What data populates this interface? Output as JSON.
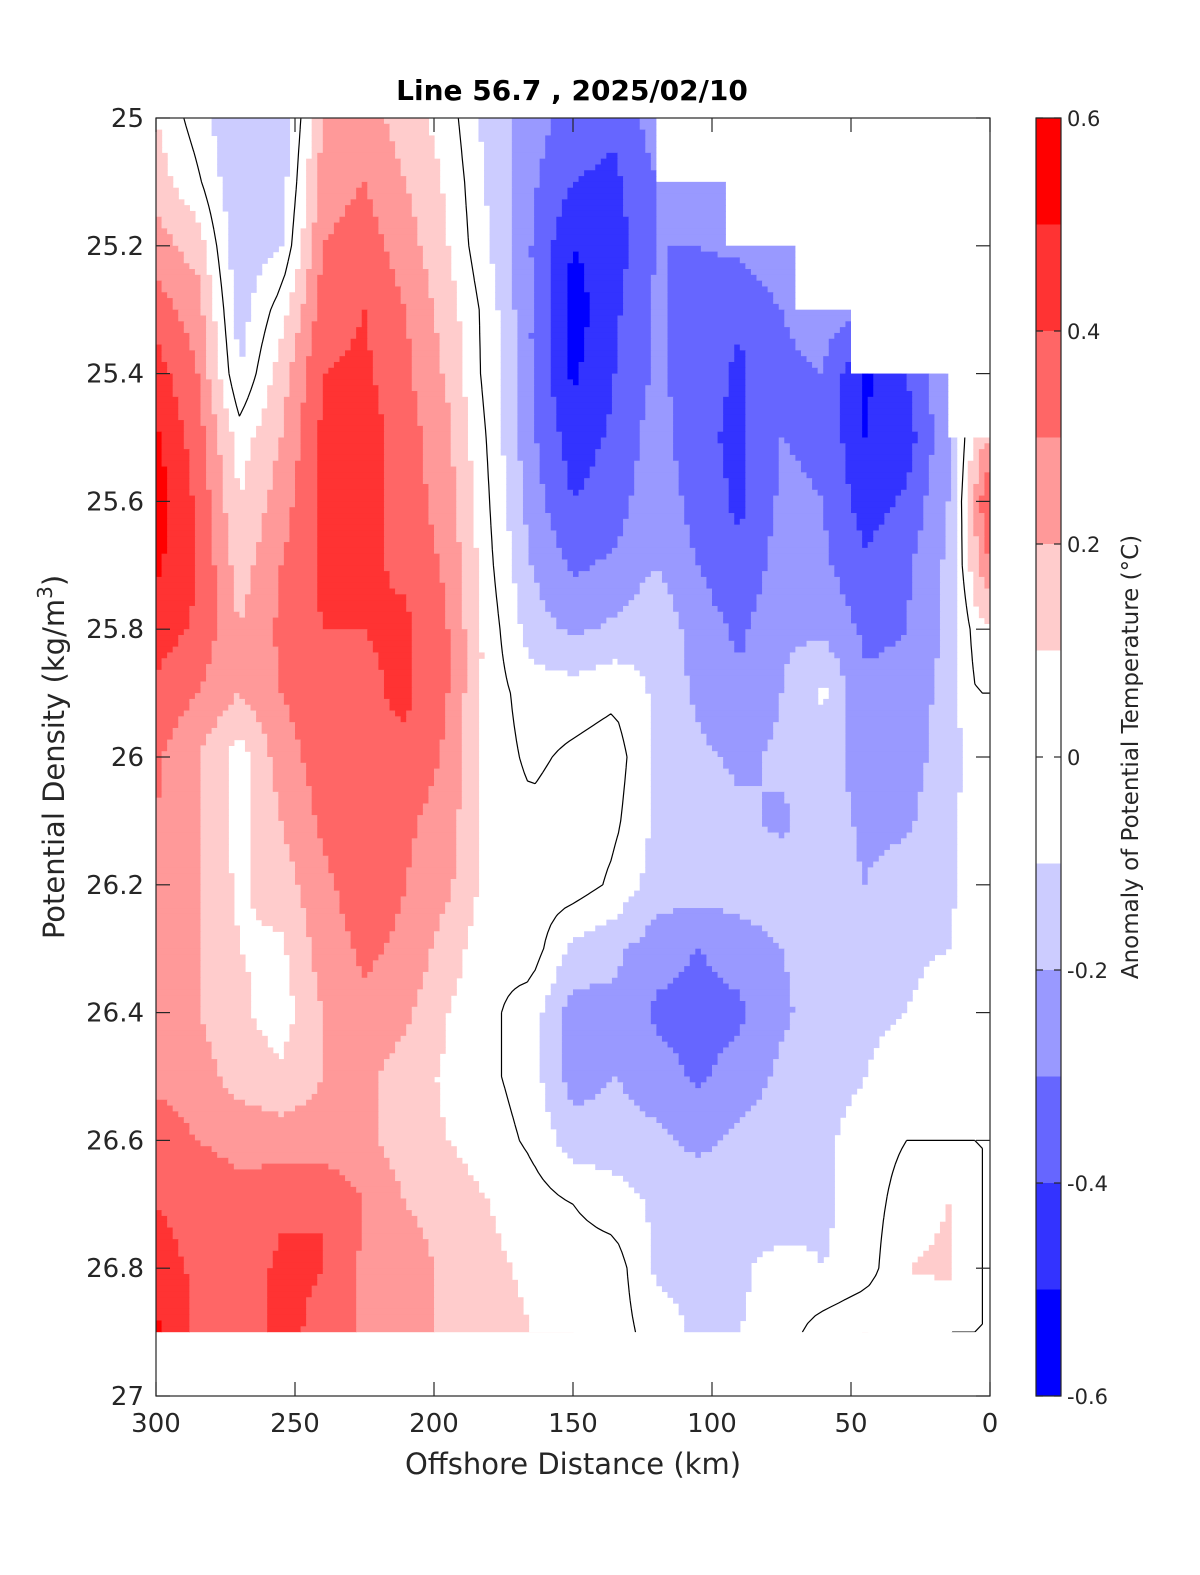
{
  "chart_data": {
    "type": "heatmap",
    "title": "Line 56.7 , 2025/02/10",
    "xlabel": "Offshore Distance (km)",
    "ylabel_main": "Potential Density (kg/m",
    "ylabel_sup": "3",
    "ylabel_close": ")",
    "xlim": [
      300,
      0
    ],
    "ylim": [
      25,
      27
    ],
    "x_reversed": true,
    "y_reversed": true,
    "x_ticks": [
      300,
      250,
      200,
      150,
      100,
      50,
      0
    ],
    "x_tick_labels": [
      "300",
      "250",
      "200",
      "150",
      "100",
      "50",
      "0"
    ],
    "y_ticks": [
      25,
      25.2,
      25.4,
      25.6,
      25.8,
      26,
      26.2,
      26.4,
      26.6,
      26.8,
      27
    ],
    "y_tick_labels": [
      "25",
      "25.2",
      "25.4",
      "25.6",
      "25.8",
      "26",
      "26.2",
      "26.4",
      "26.6",
      "26.8",
      "27"
    ],
    "grid": false,
    "colorbar": {
      "label": "Anomaly of Potential Temperature (°C)",
      "placement": "right",
      "limits": [
        -0.6,
        0.6
      ],
      "ticks": [
        -0.6,
        -0.4,
        -0.2,
        0,
        0.2,
        0.4,
        0.6
      ],
      "tick_labels": [
        "-0.6",
        "-0.4",
        "-0.2",
        "0",
        "0.2",
        "0.4",
        "0.6"
      ],
      "levels": [
        -0.6,
        -0.5,
        -0.4,
        -0.3,
        -0.2,
        -0.1,
        0.1,
        0.2,
        0.3,
        0.4,
        0.5,
        0.6
      ],
      "colors": [
        "#0000ff",
        "#3333ff",
        "#6666ff",
        "#9999ff",
        "#ccccff",
        "#ffffff",
        "#ffcccc",
        "#ff9999",
        "#ff6666",
        "#ff3333",
        "#ff0000"
      ]
    },
    "data_coverage": {
      "x": [
        300,
        270,
        240,
        165,
        120,
        95,
        70,
        50,
        25,
        15,
        5,
        0
      ],
      "top_density": [
        25,
        25,
        25,
        25,
        25.1,
        25.2,
        25.3,
        25.4,
        25.4,
        25.5,
        25.5,
        25.6
      ],
      "bottom_density": 26.9
    },
    "zero_contour_color": "#000000",
    "anomaly_field": {
      "x": [
        300,
        285,
        270,
        255,
        240,
        225,
        210,
        195,
        180,
        165,
        150,
        135,
        120,
        105,
        90,
        75,
        60,
        45,
        30,
        15,
        5,
        0
      ],
      "density": [
        25.0,
        25.1,
        25.2,
        25.3,
        25.4,
        25.5,
        25.6,
        25.7,
        25.8,
        25.9,
        26.0,
        26.1,
        26.2,
        26.3,
        26.4,
        26.5,
        26.6,
        26.7,
        26.8,
        26.9
      ],
      "values": [
        [
          0.1,
          -0.05,
          -0.2,
          -0.18,
          0.2,
          0.25,
          0.15,
          0.05,
          -0.15,
          -0.25,
          -0.35,
          -0.38,
          -0.25,
          -0.22,
          -0.18,
          -0.15,
          -0.12,
          -0.2,
          -0.12,
          -0.08,
          -0.1,
          -0.1
        ],
        [
          0.15,
          0.02,
          -0.2,
          -0.15,
          0.25,
          0.3,
          0.2,
          0.08,
          -0.12,
          -0.28,
          -0.4,
          -0.42,
          -0.3,
          -0.25,
          -0.22,
          -0.18,
          -0.15,
          -0.2,
          -0.15,
          -0.1,
          -0.1,
          -0.1
        ],
        [
          0.25,
          0.15,
          -0.18,
          -0.1,
          0.3,
          0.35,
          0.25,
          0.1,
          -0.1,
          -0.3,
          -0.5,
          -0.45,
          -0.3,
          -0.3,
          -0.28,
          -0.22,
          -0.18,
          -0.22,
          -0.18,
          -0.12,
          -0.1,
          -0.1
        ],
        [
          0.35,
          0.25,
          -0.15,
          0.05,
          0.35,
          0.4,
          0.3,
          0.15,
          -0.05,
          -0.3,
          -0.55,
          -0.42,
          -0.28,
          -0.35,
          -0.38,
          -0.3,
          -0.25,
          -0.28,
          -0.22,
          -0.15,
          -0.1,
          -0.1
        ],
        [
          0.45,
          0.3,
          -0.1,
          0.15,
          0.4,
          0.42,
          0.32,
          0.18,
          -0.05,
          -0.3,
          -0.52,
          -0.4,
          -0.28,
          -0.35,
          -0.42,
          -0.32,
          -0.3,
          -0.52,
          -0.4,
          -0.2,
          0.05,
          0.1
        ],
        [
          0.52,
          0.35,
          0.05,
          0.2,
          0.42,
          0.45,
          0.35,
          0.22,
          -0.02,
          -0.28,
          -0.45,
          -0.38,
          -0.25,
          -0.38,
          -0.42,
          -0.3,
          -0.32,
          -0.5,
          -0.45,
          -0.22,
          0.15,
          0.2
        ],
        [
          0.55,
          0.38,
          0.1,
          0.25,
          0.42,
          0.45,
          0.35,
          0.25,
          0.0,
          -0.25,
          -0.4,
          -0.35,
          -0.22,
          -0.35,
          -0.42,
          -0.28,
          -0.3,
          -0.45,
          -0.38,
          -0.2,
          0.22,
          0.45
        ],
        [
          0.52,
          0.4,
          0.15,
          0.3,
          0.42,
          0.42,
          0.38,
          0.28,
          0.02,
          -0.2,
          -0.32,
          -0.28,
          -0.2,
          -0.3,
          -0.38,
          -0.25,
          -0.28,
          -0.38,
          -0.32,
          -0.18,
          0.18,
          0.3
        ],
        [
          0.45,
          0.38,
          0.2,
          0.32,
          0.4,
          0.4,
          0.42,
          0.3,
          0.05,
          -0.15,
          -0.22,
          -0.18,
          -0.12,
          -0.25,
          -0.32,
          -0.22,
          -0.22,
          -0.32,
          -0.3,
          -0.18,
          0.05,
          0.1
        ],
        [
          0.38,
          0.3,
          0.2,
          0.3,
          0.38,
          0.38,
          0.42,
          0.3,
          0.05,
          -0.05,
          -0.05,
          -0.02,
          -0.12,
          -0.22,
          -0.28,
          -0.2,
          -0.08,
          -0.28,
          -0.28,
          -0.15,
          0.0,
          0.0
        ],
        [
          0.32,
          0.2,
          0.05,
          0.25,
          0.35,
          0.38,
          0.38,
          0.28,
          0.05,
          -0.02,
          0.02,
          0.05,
          -0.12,
          -0.18,
          -0.22,
          -0.18,
          -0.15,
          -0.25,
          -0.25,
          -0.15,
          -0.05,
          -0.05
        ],
        [
          0.3,
          0.2,
          0.05,
          0.2,
          0.32,
          0.35,
          0.32,
          0.25,
          0.05,
          0.02,
          0.05,
          0.02,
          -0.12,
          -0.15,
          -0.18,
          -0.22,
          -0.15,
          -0.22,
          -0.22,
          -0.12,
          -0.05,
          -0.05
        ],
        [
          0.28,
          0.2,
          0.08,
          0.15,
          0.28,
          0.35,
          0.3,
          0.22,
          0.05,
          0.05,
          0.05,
          -0.02,
          -0.15,
          -0.15,
          -0.15,
          -0.15,
          -0.15,
          -0.2,
          -0.15,
          -0.12,
          -0.05,
          -0.05
        ],
        [
          0.25,
          0.2,
          0.1,
          0.08,
          0.25,
          0.32,
          0.28,
          0.15,
          0.02,
          0.05,
          -0.12,
          -0.18,
          -0.25,
          -0.3,
          -0.25,
          -0.2,
          -0.15,
          -0.15,
          -0.12,
          -0.1,
          -0.05,
          -0.05
        ],
        [
          0.25,
          0.2,
          0.12,
          0.05,
          0.2,
          0.28,
          0.22,
          0.1,
          0.02,
          -0.05,
          -0.25,
          -0.22,
          -0.32,
          -0.35,
          -0.32,
          -0.22,
          -0.15,
          -0.12,
          -0.1,
          -0.05,
          -0.05,
          -0.05
        ],
        [
          0.28,
          0.25,
          0.15,
          0.12,
          0.2,
          0.22,
          0.15,
          0.08,
          0.02,
          -0.05,
          -0.25,
          -0.2,
          -0.25,
          -0.32,
          -0.25,
          -0.18,
          -0.15,
          -0.1,
          -0.05,
          -0.05,
          -0.05,
          -0.05
        ],
        [
          0.35,
          0.3,
          0.28,
          0.25,
          0.25,
          0.22,
          0.15,
          0.1,
          0.05,
          -0.02,
          -0.15,
          -0.15,
          -0.18,
          -0.22,
          -0.18,
          -0.15,
          -0.12,
          -0.05,
          0.0,
          0.0,
          0.0,
          0.0
        ],
        [
          0.4,
          0.35,
          0.32,
          0.38,
          0.4,
          0.3,
          0.2,
          0.15,
          0.1,
          0.05,
          0.0,
          -0.05,
          -0.12,
          -0.15,
          -0.15,
          -0.18,
          -0.12,
          -0.05,
          0.05,
          0.1,
          0.0,
          0.0
        ],
        [
          0.45,
          0.38,
          0.35,
          0.42,
          0.4,
          0.28,
          0.25,
          0.18,
          0.12,
          0.08,
          0.05,
          0.05,
          -0.12,
          -0.12,
          -0.12,
          -0.05,
          -0.1,
          -0.05,
          0.1,
          0.12,
          0.0,
          0.0
        ],
        [
          0.52,
          0.38,
          0.35,
          0.42,
          0.38,
          0.28,
          0.25,
          0.18,
          0.15,
          0.1,
          0.1,
          0.05,
          -0.05,
          -0.12,
          -0.1,
          -0.05,
          0.05,
          0.1,
          0.05,
          0.0,
          0.0,
          0.0
        ]
      ]
    }
  }
}
